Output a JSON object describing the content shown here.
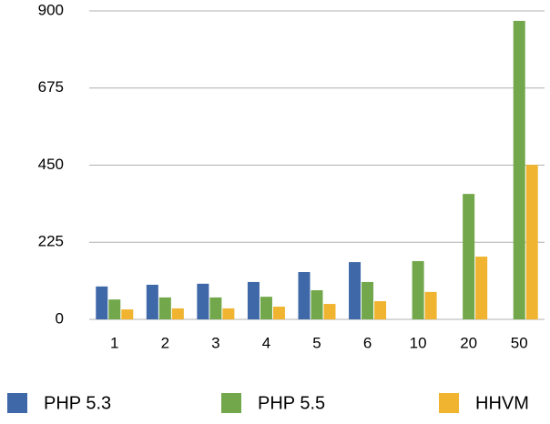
{
  "chart_data": {
    "type": "bar",
    "categories": [
      "1",
      "2",
      "3",
      "4",
      "5",
      "6",
      "10",
      "20",
      "50"
    ],
    "series": [
      {
        "name": "PHP 5.3",
        "color": "#3e68a8",
        "values": [
          96,
          101,
          104,
          109,
          138,
          167,
          null,
          null,
          null
        ]
      },
      {
        "name": "PHP 5.5",
        "color": "#72a84b",
        "values": [
          58,
          64,
          64,
          66,
          85,
          109,
          170,
          366,
          871
        ]
      },
      {
        "name": "HHVM",
        "color": "#f0b430",
        "values": [
          29,
          32,
          32,
          37,
          45,
          53,
          80,
          183,
          451
        ]
      }
    ],
    "ylim": [
      0,
      900
    ],
    "yticks": [
      0,
      225,
      450,
      675,
      900
    ],
    "grid": true,
    "legend": "bottom"
  }
}
